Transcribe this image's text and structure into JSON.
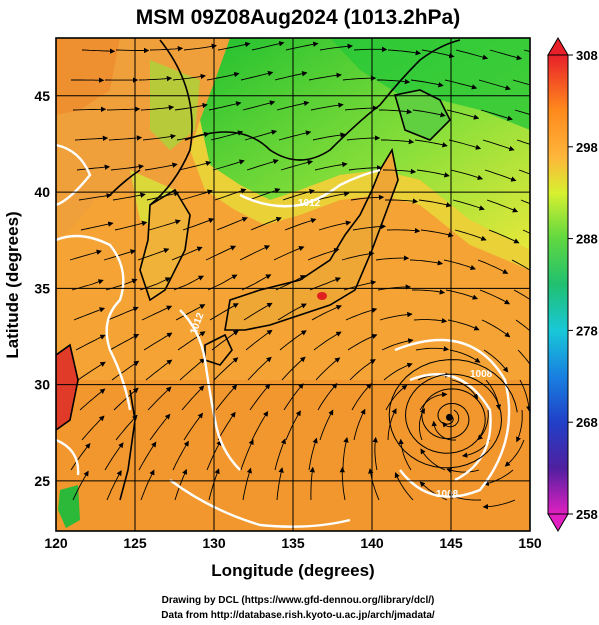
{
  "title": "MSM 09Z08Aug2024 (1013.2hPa)",
  "x_axis": {
    "label": "Longitude (degrees)",
    "range": [
      120,
      150
    ],
    "ticks": [
      "120",
      "125",
      "130",
      "135",
      "140",
      "145",
      "150"
    ]
  },
  "y_axis": {
    "label": "Latitude  (degrees)",
    "range": [
      22.4,
      48
    ],
    "ticks": [
      "25",
      "30",
      "35",
      "40",
      "45"
    ]
  },
  "colorbar": {
    "range": [
      258,
      308
    ],
    "labels": [
      "308",
      "298",
      "288",
      "278",
      "268",
      "258"
    ]
  },
  "contour_labels": [
    "1012",
    "1012",
    "1008",
    "1008"
  ],
  "credits": {
    "line1": "Drawing by DCL (https://www.gfd-dennou.org/library/dcl/)",
    "line2": "Data from http://database.rish.kyoto-u.ac.jp/arch/jmadata/"
  },
  "cyclone_center": {
    "lon": 144.9,
    "lat": 28.3
  }
}
